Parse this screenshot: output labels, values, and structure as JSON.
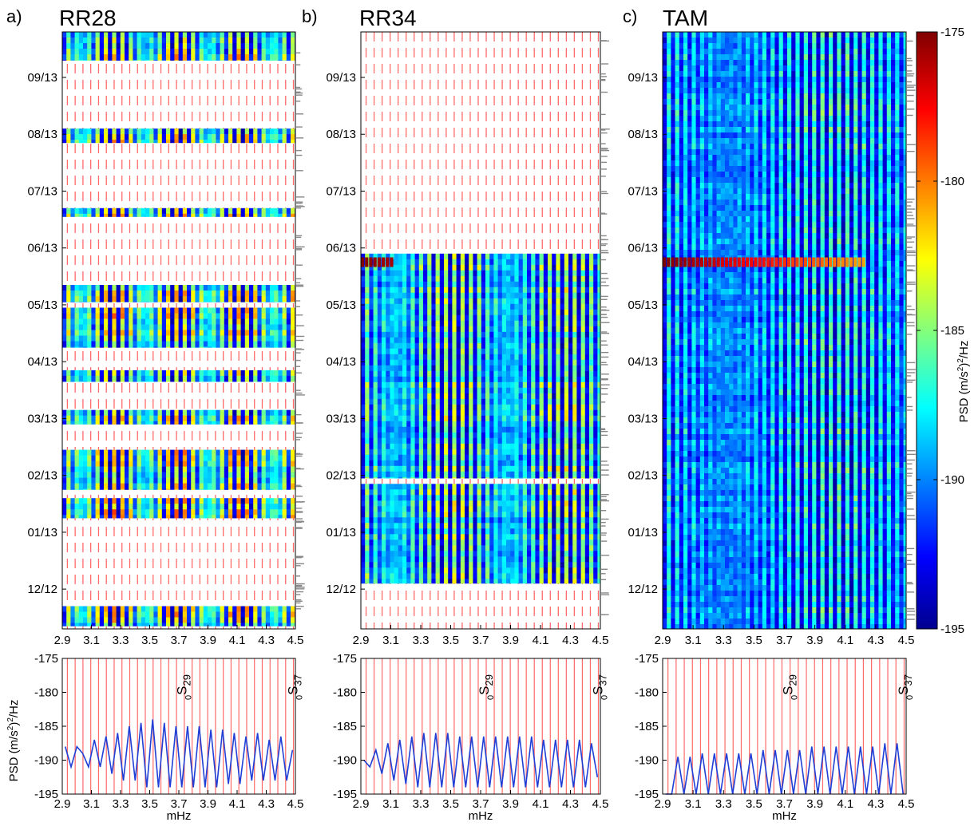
{
  "colors": {
    "stripe_normal": "#ff6a6a",
    "spectrum_line": "#1f3fd6",
    "colormap": [
      "#00008f",
      "#0000ff",
      "#00ffff",
      "#ffff00",
      "#ff0000",
      "#800000"
    ]
  },
  "shared": {
    "date_labels": [
      "09/13",
      "08/13",
      "07/13",
      "06/13",
      "05/13",
      "04/13",
      "03/13",
      "02/13",
      "01/13",
      "12/12"
    ],
    "date_positions": [
      10,
      9,
      8,
      7,
      6,
      5,
      4,
      3,
      2,
      1
    ],
    "freq_ticks": [
      "2.9",
      "3.1",
      "3.3",
      "3.5",
      "3.7",
      "3.9",
      "4.1",
      "4.3",
      "4.5"
    ],
    "psd_ticks": [
      "-175",
      "-180",
      "-185",
      "-190",
      "-195"
    ],
    "xlabel": "mHz",
    "ylabel_parts": [
      "PSD (m/s",
      "2",
      ")",
      "2",
      "/Hz"
    ],
    "mode_labels": [
      {
        "pre": "0",
        "main": "S",
        "sub": "29",
        "freq": 3.72
      },
      {
        "pre": "0",
        "main": "S",
        "sub": "37",
        "freq": 4.48
      }
    ],
    "colorbar": {
      "ticks": [
        "-175",
        "-180",
        "-185",
        "-190",
        "-195"
      ],
      "vmin": -195,
      "vmax": -175,
      "label_parts": [
        "PSD (m/s",
        "2",
        ")",
        "2",
        "/Hz"
      ]
    }
  },
  "chart_data": [
    {
      "type": "heatmap",
      "panel": "a)",
      "title": "RR28",
      "xlim": [
        2.9,
        4.5
      ],
      "ylim": [
        0.3,
        10.8
      ],
      "data_segments": [
        [
          10.3,
          10.8
        ],
        [
          8.85,
          9.1
        ],
        [
          7.55,
          7.7
        ],
        [
          6.05,
          6.35
        ],
        [
          5.25,
          5.95
        ],
        [
          4.65,
          4.85
        ],
        [
          3.9,
          4.15
        ],
        [
          2.75,
          3.45
        ],
        [
          2.25,
          2.6
        ],
        [
          0.35,
          0.7
        ]
      ],
      "intensity": "medium-high"
    },
    {
      "type": "line",
      "panel": "a) spectrum",
      "xlim": [
        2.9,
        4.5
      ],
      "ylim": [
        -195,
        -175
      ],
      "x": [
        2.92,
        2.96,
        3.0,
        3.04,
        3.08,
        3.12,
        3.16,
        3.2,
        3.24,
        3.28,
        3.32,
        3.36,
        3.4,
        3.44,
        3.48,
        3.52,
        3.56,
        3.6,
        3.64,
        3.68,
        3.72,
        3.76,
        3.8,
        3.84,
        3.88,
        3.92,
        3.96,
        4.0,
        4.04,
        4.08,
        4.12,
        4.16,
        4.2,
        4.24,
        4.28,
        4.32,
        4.36,
        4.4,
        4.44,
        4.48
      ],
      "y": [
        -188,
        -191,
        -188,
        -189,
        -191,
        -187,
        -191,
        -186.5,
        -192,
        -186,
        -193,
        -185,
        -193,
        -184.5,
        -194,
        -184,
        -194,
        -184.5,
        -194,
        -185,
        -194,
        -185,
        -194,
        -185,
        -194,
        -185.5,
        -194,
        -185.5,
        -193.5,
        -186,
        -193.5,
        -186.5,
        -193,
        -186,
        -193,
        -187,
        -193,
        -186.5,
        -193,
        -188.5
      ]
    },
    {
      "type": "heatmap",
      "panel": "b)",
      "title": "RR34",
      "xlim": [
        2.9,
        4.5
      ],
      "ylim": [
        0.3,
        10.8
      ],
      "data_segments": [
        [
          2.95,
          6.9
        ],
        [
          1.1,
          2.85
        ]
      ],
      "intensity": "medium",
      "event_row": 6.75
    },
    {
      "type": "line",
      "panel": "b) spectrum",
      "xlim": [
        2.9,
        4.5
      ],
      "ylim": [
        -195,
        -175
      ],
      "x": [
        2.92,
        2.96,
        3.0,
        3.04,
        3.08,
        3.12,
        3.16,
        3.2,
        3.24,
        3.28,
        3.32,
        3.36,
        3.4,
        3.44,
        3.48,
        3.52,
        3.56,
        3.6,
        3.64,
        3.68,
        3.72,
        3.76,
        3.8,
        3.84,
        3.88,
        3.92,
        3.96,
        4.0,
        4.04,
        4.08,
        4.12,
        4.16,
        4.2,
        4.24,
        4.28,
        4.32,
        4.36,
        4.4,
        4.44,
        4.48
      ],
      "y": [
        -190,
        -191,
        -188.5,
        -192,
        -187.5,
        -193,
        -187,
        -193.5,
        -186.5,
        -194,
        -186,
        -194,
        -186,
        -194,
        -186,
        -194,
        -186.5,
        -194,
        -186.5,
        -194,
        -186.5,
        -194,
        -186.5,
        -194,
        -186.5,
        -194,
        -186.5,
        -194,
        -186.5,
        -194,
        -187,
        -194,
        -187,
        -194,
        -187,
        -194,
        -187,
        -194,
        -187.5,
        -192.5
      ]
    },
    {
      "type": "heatmap",
      "panel": "c)",
      "title": "TAM",
      "xlim": [
        2.9,
        4.5
      ],
      "ylim": [
        0.3,
        10.8
      ],
      "data_segments": [
        [
          0.3,
          10.8
        ]
      ],
      "intensity": "low",
      "event_row": 6.75
    },
    {
      "type": "line",
      "panel": "c) spectrum",
      "xlim": [
        2.9,
        4.5
      ],
      "ylim": [
        -195,
        -175
      ],
      "x": [
        2.92,
        2.96,
        3.0,
        3.04,
        3.08,
        3.12,
        3.16,
        3.2,
        3.24,
        3.28,
        3.32,
        3.36,
        3.4,
        3.44,
        3.48,
        3.52,
        3.56,
        3.6,
        3.64,
        3.68,
        3.72,
        3.76,
        3.8,
        3.84,
        3.88,
        3.92,
        3.96,
        4.0,
        4.04,
        4.08,
        4.12,
        4.16,
        4.2,
        4.24,
        4.28,
        4.32,
        4.36,
        4.4,
        4.44,
        4.48
      ],
      "y": [
        -195,
        -195,
        -189.5,
        -195,
        -189.5,
        -195,
        -189,
        -195,
        -189,
        -195,
        -189,
        -195,
        -189,
        -195,
        -189,
        -195,
        -188.5,
        -195,
        -188.5,
        -195,
        -188.5,
        -195,
        -188.5,
        -195,
        -188,
        -195,
        -188,
        -195,
        -188,
        -195,
        -188,
        -195,
        -188,
        -195,
        -188,
        -195,
        -187.5,
        -195,
        -187.5,
        -195
      ]
    }
  ]
}
